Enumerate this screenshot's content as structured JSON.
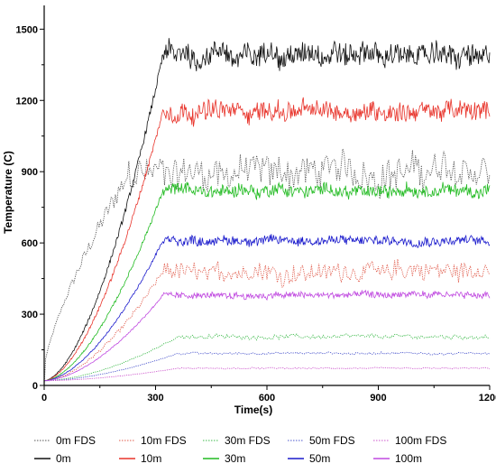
{
  "chart_data": {
    "type": "line",
    "xlabel": "Time(s)",
    "ylabel": "Temperature (C)",
    "xlim": [
      0,
      1200
    ],
    "ylim": [
      0,
      1600
    ],
    "xticks": [
      0,
      300,
      600,
      900,
      1200
    ],
    "yticks": [
      0,
      300,
      600,
      900,
      1200,
      1500
    ],
    "grid": false,
    "legend_position": "bottom",
    "series": [
      {
        "name": "0m FDS",
        "style": "dotted",
        "color": "#555555",
        "ramp_end": 230,
        "plateau": 900,
        "noise": 80
      },
      {
        "name": "10m FDS",
        "style": "dotted",
        "color": "#e05a4a",
        "ramp_end": 320,
        "plateau": 480,
        "noise": 45
      },
      {
        "name": "30m FDS",
        "style": "dotted",
        "color": "#3cba4a",
        "ramp_end": 360,
        "plateau": 205,
        "noise": 10
      },
      {
        "name": "50m FDS",
        "style": "dotted",
        "color": "#4a55cc",
        "ramp_end": 360,
        "plateau": 135,
        "noise": 5
      },
      {
        "name": "100m FDS",
        "style": "dotted",
        "color": "#cc55cc",
        "ramp_end": 360,
        "plateau": 72,
        "noise": 3
      },
      {
        "name": "0m",
        "style": "solid",
        "color": "#111111",
        "ramp_end": 320,
        "plateau": 1390,
        "noise": 55
      },
      {
        "name": "10m",
        "style": "solid",
        "color": "#e8332a",
        "ramp_end": 320,
        "plateau": 1155,
        "noise": 45
      },
      {
        "name": "30m",
        "style": "solid",
        "color": "#22bb22",
        "ramp_end": 320,
        "plateau": 820,
        "noise": 30
      },
      {
        "name": "50m",
        "style": "solid",
        "color": "#1a1acc",
        "ramp_end": 320,
        "plateau": 610,
        "noise": 22
      },
      {
        "name": "100m",
        "style": "solid",
        "color": "#c04ae0",
        "ramp_end": 320,
        "plateau": 380,
        "noise": 15
      }
    ]
  }
}
